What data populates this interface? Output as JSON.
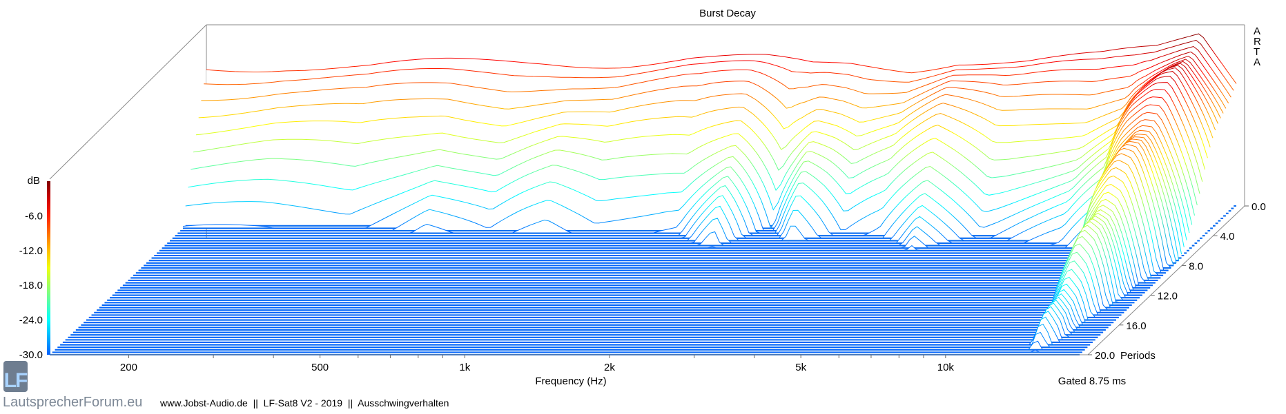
{
  "chart_data": {
    "type": "waterfall",
    "title": "Burst Decay",
    "xlabel": "Frequency (Hz)",
    "xscale": "log",
    "xlim": [
      137,
      19000
    ],
    "xticks": [
      {
        "value": 200,
        "label": "200"
      },
      {
        "value": 500,
        "label": "500"
      },
      {
        "value": 1000,
        "label": "1k"
      },
      {
        "value": 2000,
        "label": "2k"
      },
      {
        "value": 5000,
        "label": "5k"
      },
      {
        "value": 10000,
        "label": "10k"
      }
    ],
    "zlabel": "dB",
    "zlim": [
      -30,
      0
    ],
    "zticks": [
      "-6.0",
      "-12.0",
      "-18.0",
      "-24.0",
      "-30.0"
    ],
    "zvalues": [
      -6,
      -12,
      -18,
      -24,
      -30
    ],
    "ylabel": "Periods",
    "ylim": [
      0,
      20
    ],
    "yticks": [
      "0.0",
      "4.0",
      "8.0",
      "12.0",
      "16.0",
      "20.0"
    ],
    "yvalues": [
      0,
      4,
      8,
      12,
      16,
      20
    ],
    "slice_step_periods": 0.3333,
    "initial_level_db": [
      [
        137,
        -6
      ],
      [
        200,
        -5.5
      ],
      [
        300,
        -6
      ],
      [
        500,
        -5.5
      ],
      [
        700,
        -5
      ],
      [
        1000,
        -5
      ],
      [
        1400,
        -4.5
      ],
      [
        2000,
        -5
      ],
      [
        2500,
        -6
      ],
      [
        3000,
        -5.5
      ],
      [
        4000,
        -6
      ],
      [
        5000,
        -4.5
      ],
      [
        7000,
        -5
      ],
      [
        10000,
        -4.5
      ],
      [
        13000,
        -3
      ],
      [
        16000,
        0
      ],
      [
        19000,
        -8
      ]
    ],
    "decay_to_floor_periods": [
      [
        137,
        3.5
      ],
      [
        300,
        3.5
      ],
      [
        450,
        4.5
      ],
      [
        600,
        3.8
      ],
      [
        800,
        4.5
      ],
      [
        1000,
        4
      ],
      [
        1500,
        4.5
      ],
      [
        1900,
        6.5
      ],
      [
        2300,
        3.5
      ],
      [
        2700,
        6
      ],
      [
        3300,
        4.2
      ],
      [
        4000,
        5
      ],
      [
        5000,
        7
      ],
      [
        6500,
        5
      ],
      [
        8000,
        5.5
      ],
      [
        10000,
        6
      ],
      [
        12000,
        7.5
      ],
      [
        13500,
        16
      ],
      [
        15000,
        21
      ],
      [
        16500,
        17
      ],
      [
        18000,
        12
      ],
      [
        19000,
        9
      ]
    ],
    "annotation_right": "Gated 8.75 ms",
    "watermark_vertical": "ARTA"
  },
  "footer": {
    "caption": "www.Jobst-Audio.de  ||  LF-Sat8 V2 - 2019  ||  Ausschwingverhalten",
    "logo_letters": "LF",
    "logo_text": "LautsprecherForum.eu"
  }
}
